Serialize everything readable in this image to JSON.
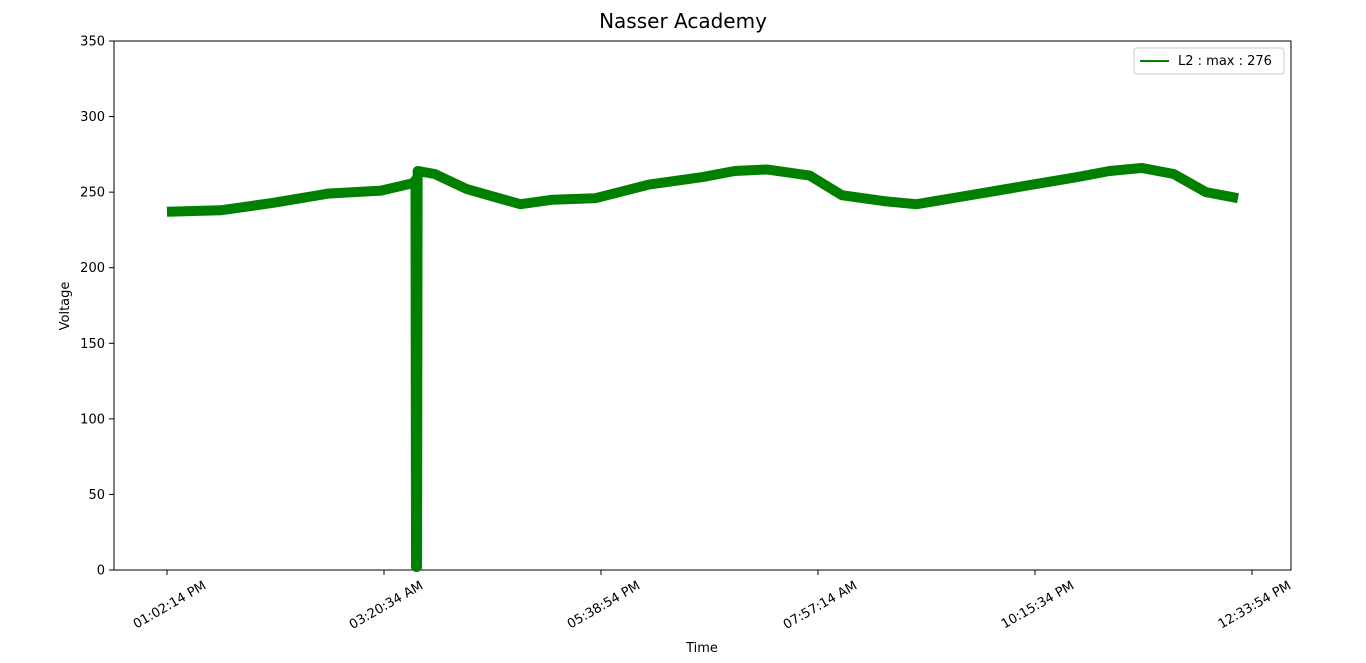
{
  "chart_data": {
    "type": "line",
    "title": "Nasser Academy",
    "xlabel": "Time",
    "ylabel": "Voltage",
    "ylim": [
      0,
      350
    ],
    "y_ticks": [
      0,
      50,
      100,
      150,
      200,
      250,
      300,
      350
    ],
    "x_ticks": [
      "01:02:14 PM",
      "03:20:34 AM",
      "05:38:54 PM",
      "07:57:14 AM",
      "10:15:34 PM",
      "12:33:54 PM"
    ],
    "grid": false,
    "legend_position": "top-right",
    "series": [
      {
        "name": "L2 : max : 276",
        "color": "#008000",
        "band_width": 10,
        "x": [
          0.0,
          0.05,
          0.1,
          0.15,
          0.2,
          0.23,
          0.232,
          0.2325,
          0.2335,
          0.234,
          0.25,
          0.28,
          0.3,
          0.33,
          0.36,
          0.4,
          0.45,
          0.5,
          0.53,
          0.56,
          0.6,
          0.63,
          0.67,
          0.7,
          0.75,
          0.8,
          0.85,
          0.88,
          0.91,
          0.94,
          0.97,
          1.0
        ],
        "values": [
          237,
          238,
          243,
          249,
          251,
          256,
          258,
          2,
          2,
          264,
          262,
          252,
          248,
          242,
          245,
          246,
          255,
          260,
          264,
          265,
          261,
          248,
          244,
          242,
          248,
          254,
          260,
          264,
          266,
          262,
          250,
          246
        ]
      }
    ]
  }
}
